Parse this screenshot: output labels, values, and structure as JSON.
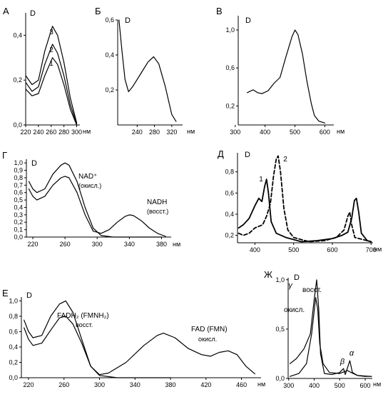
{
  "chart_data": [
    {
      "type": "line",
      "panel_label": "А",
      "ylabel": "D",
      "xunit": "нм",
      "xlim": [
        220,
        305
      ],
      "ylim": [
        0,
        0.5
      ],
      "xticks": [
        "220",
        "240",
        "260",
        "280",
        "300"
      ],
      "xtick_values": [
        220,
        240,
        260,
        280,
        300
      ],
      "yticks": [
        "0,0",
        "0,2",
        "0,4"
      ],
      "ytick_values": [
        0,
        0.2,
        0.4
      ],
      "series": [
        {
          "name": "3",
          "style": "solid",
          "points": [
            [
              220,
              0.22
            ],
            [
              230,
              0.18
            ],
            [
              240,
              0.2
            ],
            [
              250,
              0.33
            ],
            [
              262,
              0.44
            ],
            [
              270,
              0.4
            ],
            [
              280,
              0.28
            ],
            [
              290,
              0.12
            ],
            [
              300,
              0.01
            ]
          ]
        },
        {
          "name": "2",
          "style": "solid",
          "points": [
            [
              220,
              0.19
            ],
            [
              230,
              0.15
            ],
            [
              240,
              0.17
            ],
            [
              250,
              0.27
            ],
            [
              262,
              0.36
            ],
            [
              270,
              0.32
            ],
            [
              280,
              0.22
            ],
            [
              290,
              0.09
            ],
            [
              300,
              0.005
            ]
          ]
        },
        {
          "name": "1",
          "style": "solid",
          "points": [
            [
              220,
              0.16
            ],
            [
              230,
              0.13
            ],
            [
              240,
              0.14
            ],
            [
              250,
              0.22
            ],
            [
              262,
              0.3
            ],
            [
              270,
              0.27
            ],
            [
              280,
              0.18
            ],
            [
              290,
              0.07
            ],
            [
              300,
              0.0
            ]
          ]
        }
      ]
    },
    {
      "type": "line",
      "panel_label": "Б",
      "ylabel": "D",
      "xunit": "нм",
      "xlim": [
        195,
        345
      ],
      "ylim": [
        0,
        0.6
      ],
      "xticks": [
        "240",
        "280",
        "320"
      ],
      "xtick_values": [
        240,
        280,
        320
      ],
      "yticks": [
        "0,2",
        "0,4",
        "0,6"
      ],
      "ytick_values": [
        0.2,
        0.4,
        0.6
      ],
      "series": [
        {
          "name": "",
          "style": "solid",
          "points": [
            [
              198,
              0.6
            ],
            [
              205,
              0.42
            ],
            [
              212,
              0.26
            ],
            [
              220,
              0.19
            ],
            [
              230,
              0.22
            ],
            [
              250,
              0.3
            ],
            [
              265,
              0.36
            ],
            [
              278,
              0.39
            ],
            [
              290,
              0.35
            ],
            [
              305,
              0.22
            ],
            [
              320,
              0.06
            ],
            [
              330,
              0.02
            ]
          ]
        }
      ]
    },
    {
      "type": "line",
      "panel_label": "В",
      "ylabel": "D",
      "xunit": "нм",
      "xlim": [
        310,
        630
      ],
      "ylim": [
        0,
        1.15
      ],
      "xticks": [
        "300",
        "400",
        "500",
        "600"
      ],
      "xtick_values": [
        300,
        400,
        500,
        600
      ],
      "yticks": [
        "0,2",
        "0,6",
        "1,0"
      ],
      "ytick_values": [
        0.2,
        0.6,
        1.0
      ],
      "series": [
        {
          "name": "",
          "style": "solid",
          "points": [
            [
              340,
              0.34
            ],
            [
              360,
              0.37
            ],
            [
              375,
              0.34
            ],
            [
              390,
              0.33
            ],
            [
              410,
              0.36
            ],
            [
              430,
              0.44
            ],
            [
              450,
              0.5
            ],
            [
              470,
              0.72
            ],
            [
              490,
              0.93
            ],
            [
              500,
              1.0
            ],
            [
              510,
              0.95
            ],
            [
              525,
              0.75
            ],
            [
              540,
              0.46
            ],
            [
              555,
              0.22
            ],
            [
              565,
              0.1
            ],
            [
              580,
              0.04
            ],
            [
              600,
              0.02
            ]
          ]
        }
      ]
    },
    {
      "type": "line",
      "panel_label": "Г",
      "ylabel": "D",
      "xunit": "нм",
      "xlim": [
        212,
        392
      ],
      "ylim": [
        0,
        1.05
      ],
      "xticks": [
        "220",
        "260",
        "300",
        "340",
        "380"
      ],
      "xtick_values": [
        220,
        260,
        300,
        340,
        380
      ],
      "yticks": [
        "0,0",
        "0,1",
        "0,2",
        "0,3",
        "0,4",
        "0,5",
        "0,6",
        "0,7",
        "0,8",
        "0,9",
        "1,0"
      ],
      "ytick_values": [
        0,
        0.1,
        0.2,
        0.3,
        0.4,
        0.5,
        0.6,
        0.7,
        0.8,
        0.9,
        1.0
      ],
      "series": [
        {
          "name": "NAD⁺ (окисл.)",
          "style": "solid",
          "points": [
            [
              215,
              0.75
            ],
            [
              220,
              0.65
            ],
            [
              225,
              0.6
            ],
            [
              235,
              0.65
            ],
            [
              245,
              0.85
            ],
            [
              255,
              0.97
            ],
            [
              260,
              1.0
            ],
            [
              265,
              0.97
            ],
            [
              275,
              0.75
            ],
            [
              285,
              0.4
            ],
            [
              295,
              0.12
            ],
            [
              305,
              0.02
            ],
            [
              320,
              0.0
            ],
            [
              380,
              0.0
            ]
          ]
        },
        {
          "name": "NADH (восст.)",
          "style": "solid",
          "points": [
            [
              215,
              0.65
            ],
            [
              220,
              0.55
            ],
            [
              225,
              0.5
            ],
            [
              235,
              0.55
            ],
            [
              245,
              0.7
            ],
            [
              255,
              0.8
            ],
            [
              260,
              0.82
            ],
            [
              265,
              0.8
            ],
            [
              275,
              0.6
            ],
            [
              285,
              0.3
            ],
            [
              295,
              0.08
            ],
            [
              305,
              0.05
            ],
            [
              315,
              0.1
            ],
            [
              325,
              0.2
            ],
            [
              335,
              0.28
            ],
            [
              340,
              0.3
            ],
            [
              345,
              0.29
            ],
            [
              355,
              0.22
            ],
            [
              365,
              0.12
            ],
            [
              375,
              0.05
            ],
            [
              385,
              0.01
            ]
          ]
        }
      ]
    },
    {
      "type": "line",
      "panel_label": "Д",
      "ylabel": "D",
      "xunit": "нм",
      "xlim": [
        355,
        705
      ],
      "ylim": [
        0.13,
        0.98
      ],
      "xticks": [
        "400",
        "500",
        "600",
        "700"
      ],
      "xtick_values": [
        400,
        500,
        600,
        700
      ],
      "yticks": [
        "0,2",
        "0,4",
        "0,6",
        "0,8"
      ],
      "ytick_values": [
        0.2,
        0.4,
        0.6,
        0.8
      ],
      "series": [
        {
          "name": "1",
          "style": "solid",
          "points": [
            [
              358,
              0.27
            ],
            [
              370,
              0.3
            ],
            [
              385,
              0.36
            ],
            [
              400,
              0.48
            ],
            [
              410,
              0.55
            ],
            [
              418,
              0.52
            ],
            [
              425,
              0.66
            ],
            [
              430,
              0.73
            ],
            [
              435,
              0.6
            ],
            [
              442,
              0.33
            ],
            [
              455,
              0.22
            ],
            [
              480,
              0.18
            ],
            [
              520,
              0.14
            ],
            [
              560,
              0.15
            ],
            [
              600,
              0.17
            ],
            [
              625,
              0.2
            ],
            [
              640,
              0.23
            ],
            [
              650,
              0.36
            ],
            [
              657,
              0.53
            ],
            [
              662,
              0.55
            ],
            [
              668,
              0.42
            ],
            [
              675,
              0.22
            ],
            [
              690,
              0.15
            ],
            [
              700,
              0.14
            ]
          ]
        },
        {
          "name": "2",
          "style": "dashed",
          "points": [
            [
              358,
              0.22
            ],
            [
              370,
              0.2
            ],
            [
              385,
              0.22
            ],
            [
              400,
              0.27
            ],
            [
              420,
              0.3
            ],
            [
              430,
              0.38
            ],
            [
              440,
              0.5
            ],
            [
              448,
              0.76
            ],
            [
              455,
              0.92
            ],
            [
              460,
              0.95
            ],
            [
              466,
              0.8
            ],
            [
              475,
              0.45
            ],
            [
              485,
              0.25
            ],
            [
              500,
              0.18
            ],
            [
              540,
              0.14
            ],
            [
              580,
              0.15
            ],
            [
              610,
              0.18
            ],
            [
              630,
              0.25
            ],
            [
              640,
              0.38
            ],
            [
              645,
              0.42
            ],
            [
              650,
              0.3
            ],
            [
              658,
              0.18
            ],
            [
              680,
              0.16
            ],
            [
              700,
              0.14
            ]
          ]
        }
      ]
    },
    {
      "type": "line",
      "panel_label": "Е",
      "ylabel": "D",
      "xunit": "нм",
      "xlim": [
        212,
        482
      ],
      "ylim": [
        0,
        1.05
      ],
      "xticks": [
        "220",
        "260",
        "300",
        "340",
        "380",
        "420",
        "460"
      ],
      "xtick_values": [
        220,
        260,
        300,
        340,
        380,
        420,
        460
      ],
      "yticks": [
        "0,0",
        "0,2",
        "0,4",
        "0,6",
        "0,8",
        "1,0"
      ],
      "ytick_values": [
        0,
        0.2,
        0.4,
        0.6,
        0.8,
        1.0
      ],
      "series": [
        {
          "name": "FADH₂ (FMNH₂) восст.",
          "style": "solid",
          "points": [
            [
              215,
              0.65
            ],
            [
              220,
              0.5
            ],
            [
              225,
              0.42
            ],
            [
              235,
              0.45
            ],
            [
              245,
              0.62
            ],
            [
              255,
              0.78
            ],
            [
              262,
              0.8
            ],
            [
              270,
              0.7
            ],
            [
              280,
              0.45
            ],
            [
              290,
              0.15
            ],
            [
              300,
              0.03
            ],
            [
              320,
              0.0
            ],
            [
              380,
              0.0
            ]
          ]
        },
        {
          "name": "FAD (FMN) окисл.",
          "style": "solid",
          "points": [
            [
              215,
              0.75
            ],
            [
              220,
              0.6
            ],
            [
              225,
              0.52
            ],
            [
              235,
              0.55
            ],
            [
              245,
              0.8
            ],
            [
              255,
              0.96
            ],
            [
              262,
              1.0
            ],
            [
              270,
              0.85
            ],
            [
              280,
              0.5
            ],
            [
              290,
              0.15
            ],
            [
              300,
              0.04
            ],
            [
              310,
              0.06
            ],
            [
              330,
              0.2
            ],
            [
              350,
              0.42
            ],
            [
              365,
              0.55
            ],
            [
              372,
              0.58
            ],
            [
              385,
              0.52
            ],
            [
              400,
              0.38
            ],
            [
              415,
              0.3
            ],
            [
              425,
              0.28
            ],
            [
              435,
              0.33
            ],
            [
              445,
              0.35
            ],
            [
              455,
              0.3
            ],
            [
              465,
              0.15
            ],
            [
              475,
              0.05
            ]
          ]
        }
      ]
    },
    {
      "type": "line",
      "panel_label": "Ж",
      "ylabel": "D",
      "xunit": "нм",
      "xlim": [
        298,
        628
      ],
      "ylim": [
        0,
        1.02
      ],
      "xticks": [
        "300",
        "400",
        "500",
        "600"
      ],
      "xtick_values": [
        300,
        400,
        500,
        600
      ],
      "yticks": [
        "0,0",
        "0,5",
        "1,0"
      ],
      "ytick_values": [
        0,
        0.5,
        1.0
      ],
      "annotations": [
        "γ",
        "β",
        "α"
      ],
      "series": [
        {
          "name": "восст.",
          "style": "solid",
          "points": [
            [
              305,
              0.15
            ],
            [
              330,
              0.2
            ],
            [
              360,
              0.3
            ],
            [
              385,
              0.45
            ],
            [
              400,
              0.8
            ],
            [
              410,
              1.0
            ],
            [
              418,
              0.7
            ],
            [
              425,
              0.25
            ],
            [
              440,
              0.05
            ],
            [
              470,
              0.04
            ],
            [
              500,
              0.06
            ],
            [
              515,
              0.1
            ],
            [
              522,
              0.04
            ],
            [
              540,
              0.18
            ],
            [
              550,
              0.06
            ],
            [
              570,
              0.03
            ],
            [
              600,
              0.02
            ],
            [
              625,
              0.02
            ]
          ]
        },
        {
          "name": "окисл.",
          "style": "solid",
          "points": [
            [
              305,
              0.02
            ],
            [
              340,
              0.05
            ],
            [
              370,
              0.15
            ],
            [
              390,
              0.45
            ],
            [
              406,
              0.82
            ],
            [
              414,
              0.7
            ],
            [
              422,
              0.35
            ],
            [
              435,
              0.15
            ],
            [
              460,
              0.06
            ],
            [
              500,
              0.05
            ],
            [
              530,
              0.08
            ],
            [
              545,
              0.06
            ],
            [
              570,
              0.03
            ],
            [
              625,
              0.02
            ]
          ]
        }
      ]
    }
  ]
}
